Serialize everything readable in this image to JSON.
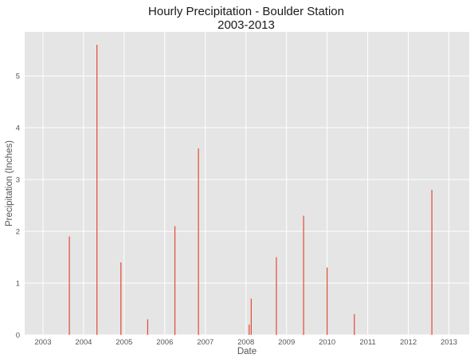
{
  "chart_data": {
    "type": "bar",
    "title": "Hourly Precipitation - Boulder Station",
    "subtitle": "2003-2013",
    "xlabel": "Date",
    "ylabel": "Precipitation (Inches)",
    "xlim": [
      2002.55,
      2013.5
    ],
    "ylim": [
      0,
      5.85
    ],
    "xticks": [
      "2003",
      "2004",
      "2005",
      "2006",
      "2007",
      "2008",
      "2009",
      "2010",
      "2011",
      "2012",
      "2013"
    ],
    "yticks": [
      "0",
      "1",
      "2",
      "3",
      "4",
      "5"
    ],
    "grid": true,
    "bar_color": "#e24a33",
    "background": "#e5e5e5",
    "x": [
      2003.65,
      2004.33,
      2004.92,
      2005.58,
      2006.25,
      2006.83,
      2008.08,
      2008.13,
      2008.75,
      2009.42,
      2010.0,
      2010.67,
      2012.58
    ],
    "values": [
      1.9,
      5.6,
      1.4,
      0.3,
      2.1,
      3.6,
      0.2,
      0.7,
      1.5,
      2.3,
      1.3,
      0.4,
      2.8
    ]
  }
}
